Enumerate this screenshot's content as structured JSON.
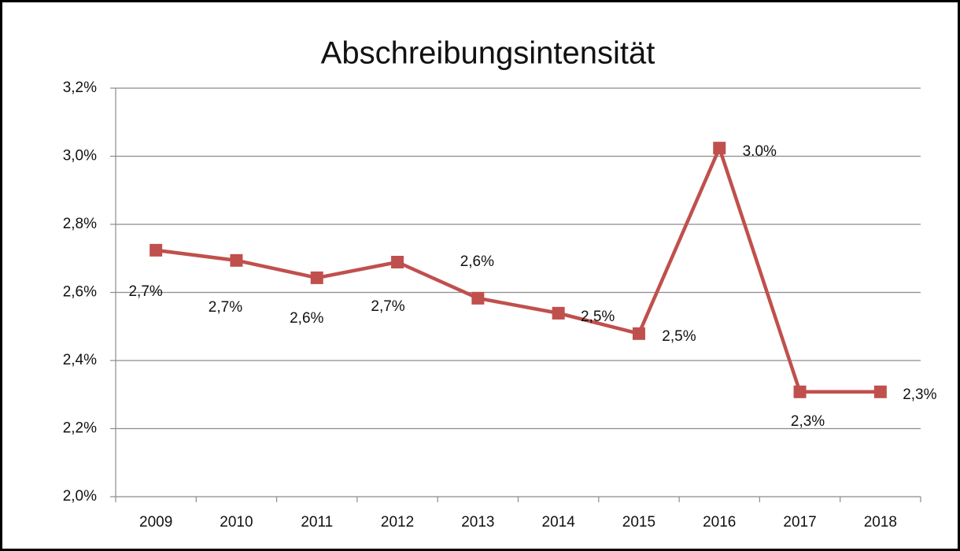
{
  "chart_data": {
    "type": "line",
    "title": "Abschreibungsintensität",
    "categories": [
      "2009",
      "2010",
      "2011",
      "2012",
      "2013",
      "2014",
      "2015",
      "2016",
      "2017",
      "2018"
    ],
    "series": [
      {
        "name": "Abschreibungsintensität",
        "color": "#c0504d",
        "values": [
          2.724,
          2.694,
          2.643,
          2.689,
          2.583,
          2.539,
          2.479,
          3.024,
          2.308,
          2.308
        ],
        "value_labels": [
          "2,7%",
          "2,7%",
          "2,6%",
          "2,7%",
          "2,6%",
          "2,5%",
          "2,5%",
          "3.0%",
          "2,3%",
          "2,3%"
        ]
      }
    ],
    "ylim": [
      2.0,
      3.2
    ],
    "yticks": [
      {
        "value": 2.0,
        "label": "2,0%"
      },
      {
        "value": 2.2,
        "label": "2,2%"
      },
      {
        "value": 2.4,
        "label": "2,4%"
      },
      {
        "value": 2.6,
        "label": "2,6%"
      },
      {
        "value": 2.8,
        "label": "2,8%"
      },
      {
        "value": 3.0,
        "label": "3,0%"
      },
      {
        "value": 3.2,
        "label": "3,2%"
      }
    ],
    "grid": true
  }
}
